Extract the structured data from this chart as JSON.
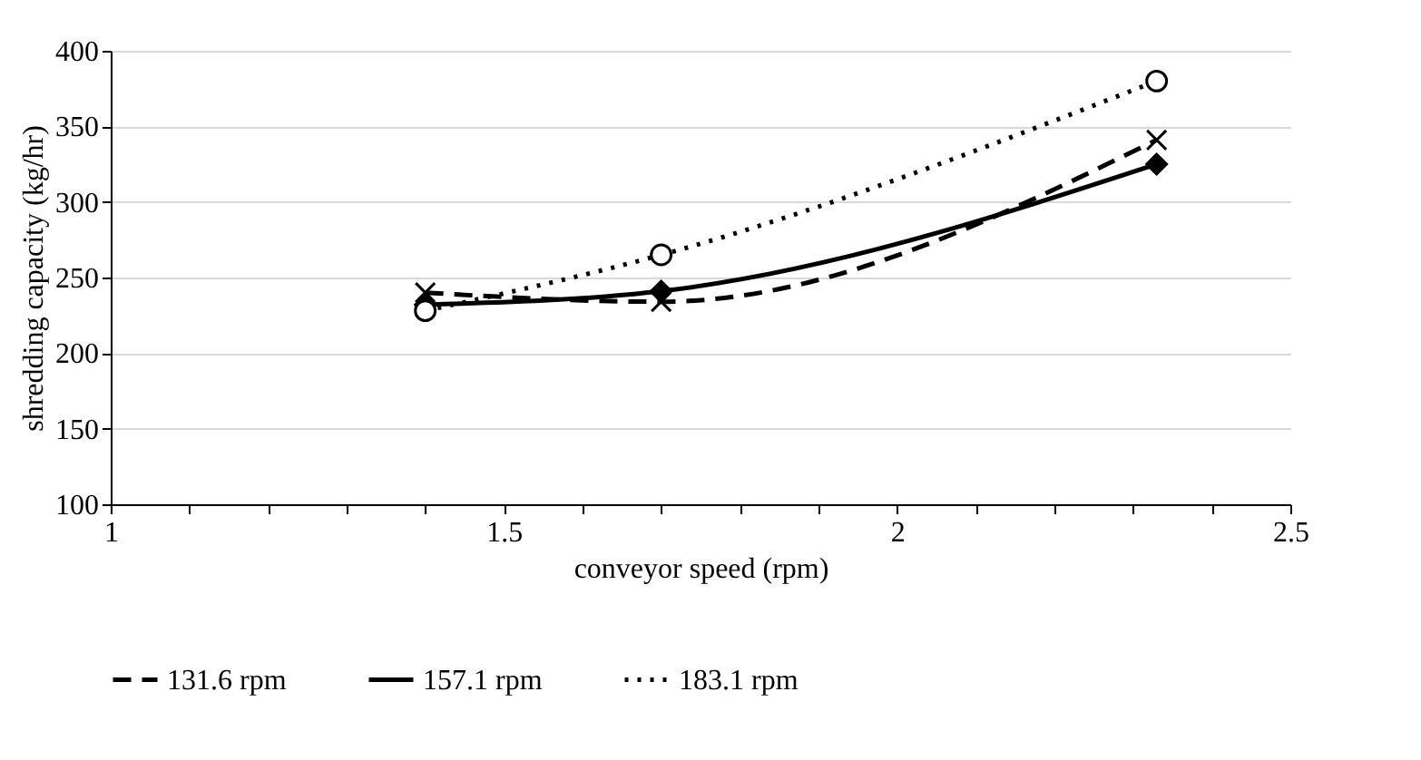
{
  "chart_data": {
    "type": "line",
    "xlabel": "conveyor speed (rpm)",
    "ylabel": "shredding capacity (kg/hr)",
    "x": [
      1.4,
      1.7,
      2.33
    ],
    "series": [
      {
        "name": "131.6 rpm",
        "color": "#000000",
        "values": [
          240,
          234,
          341
        ],
        "line_style": "dashed",
        "marker": "cross"
      },
      {
        "name": "157.1 rpm",
        "color": "#000000",
        "values": [
          232,
          241,
          325
        ],
        "line_style": "solid",
        "marker": "diamond"
      },
      {
        "name": "183.1 rpm",
        "color": "#000000",
        "values": [
          228,
          265,
          380
        ],
        "line_style": "dotted",
        "marker": "circle"
      }
    ],
    "xlim": [
      1,
      2.5
    ],
    "xticks": [
      1,
      {
        "value": 1.1,
        "label": null
      },
      {
        "value": 1.2,
        "label": null
      },
      {
        "value": 1.3,
        "label": null
      },
      {
        "value": 1.4,
        "label": null
      },
      1.5,
      {
        "value": 1.6,
        "label": null
      },
      {
        "value": 1.7,
        "label": null
      },
      {
        "value": 1.8,
        "label": null
      },
      {
        "value": 1.9,
        "label": null
      },
      2,
      {
        "value": 2.1,
        "label": null
      },
      {
        "value": 2.2,
        "label": null
      },
      {
        "value": 2.3,
        "label": null
      },
      {
        "value": 2.4,
        "label": null
      },
      2.5
    ],
    "ylim": [
      100,
      400
    ],
    "yticks": [
      100,
      150,
      200,
      250,
      300,
      350,
      400
    ],
    "grid": "y",
    "legend": "bottom"
  }
}
